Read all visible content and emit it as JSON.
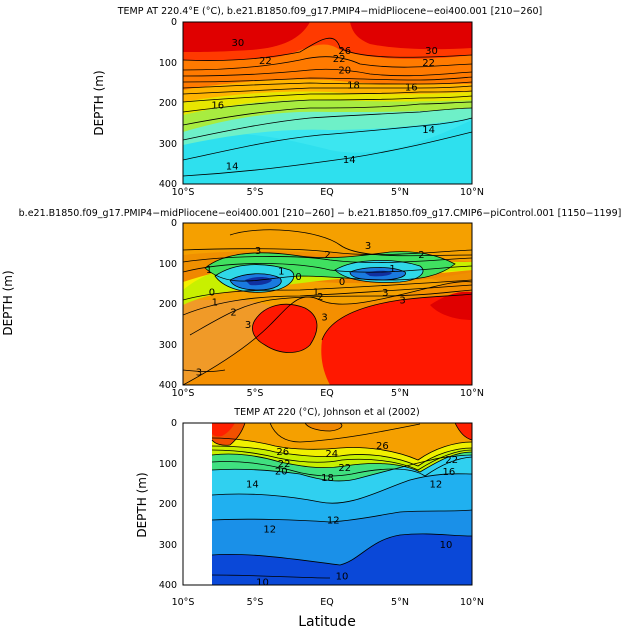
{
  "chart_data": [
    {
      "type": "contour",
      "title": "TEMP AT 220.4°E (°C), b.e21.B1850.f09_g17.PMIP4−midPliocene−eoi400.001 [210−260]",
      "xlabel": "",
      "ylabel": "DEPTH (m)",
      "xlim": [
        -10,
        10
      ],
      "ylim": [
        400,
        0
      ],
      "x_ticks": [
        "10°S",
        "5°S",
        "EQ",
        "5°N",
        "10°N"
      ],
      "y_ticks": [
        "0",
        "100",
        "200",
        "300",
        "400"
      ],
      "contour_labels": [
        {
          "text": "30",
          "x": -6.2,
          "y": 50
        },
        {
          "text": "26",
          "x": 1.2,
          "y": 70
        },
        {
          "text": "30",
          "x": 7.2,
          "y": 70
        },
        {
          "text": "22",
          "x": -4.3,
          "y": 95
        },
        {
          "text": "22",
          "x": 0.8,
          "y": 90
        },
        {
          "text": "22",
          "x": 7.0,
          "y": 100
        },
        {
          "text": "20",
          "x": 1.2,
          "y": 118
        },
        {
          "text": "18",
          "x": 1.8,
          "y": 155
        },
        {
          "text": "16",
          "x": -7.6,
          "y": 205
        },
        {
          "text": "16",
          "x": 5.8,
          "y": 160
        },
        {
          "text": "14",
          "x": 7.0,
          "y": 265
        },
        {
          "text": "14",
          "x": 1.5,
          "y": 340
        },
        {
          "text": "14",
          "x": -6.6,
          "y": 355
        }
      ]
    },
    {
      "type": "contour",
      "title": "b.e21.B1850.f09_g17.PMIP4−midPliocene−eoi400.001 [210−260] − b.e21.B1850.f09_g17.CMIP6−piControl.001 [1150−1199]",
      "xlabel": "",
      "ylabel": "DEPTH (m)",
      "xlim": [
        -10,
        10
      ],
      "ylim": [
        400,
        0
      ],
      "x_ticks": [
        "10°S",
        "5°S",
        "EQ",
        "5°N",
        "10°N"
      ],
      "y_ticks": [
        "0",
        "100",
        "200",
        "300",
        "400"
      ],
      "contour_labels": [
        {
          "text": "3",
          "x": -4.8,
          "y": 68
        },
        {
          "text": "3",
          "x": 2.8,
          "y": 55
        },
        {
          "text": "2",
          "x": 0.0,
          "y": 78
        },
        {
          "text": "2",
          "x": 6.5,
          "y": 78
        },
        {
          "text": "1",
          "x": -8.2,
          "y": 115
        },
        {
          "text": "1",
          "x": -3.2,
          "y": 118
        },
        {
          "text": "0",
          "x": -2.0,
          "y": 132
        },
        {
          "text": "1",
          "x": 4.5,
          "y": 112
        },
        {
          "text": "0",
          "x": 1.0,
          "y": 145
        },
        {
          "text": "1",
          "x": -0.8,
          "y": 170
        },
        {
          "text": "2",
          "x": -0.5,
          "y": 182
        },
        {
          "text": "3",
          "x": 4.0,
          "y": 172
        },
        {
          "text": "3",
          "x": 5.2,
          "y": 190
        },
        {
          "text": "0",
          "x": -8.0,
          "y": 170
        },
        {
          "text": "1",
          "x": -7.8,
          "y": 195
        },
        {
          "text": "2",
          "x": -6.5,
          "y": 220
        },
        {
          "text": "3",
          "x": -5.5,
          "y": 250
        },
        {
          "text": "3",
          "x": -0.2,
          "y": 232
        },
        {
          "text": "3",
          "x": -8.9,
          "y": 368
        }
      ]
    },
    {
      "type": "contour",
      "title": "TEMP AT 220 (°C), Johnson et al (2002)",
      "xlabel": "Latitude",
      "ylabel": "DEPTH (m)",
      "xlim": [
        -10,
        10
      ],
      "ylim": [
        400,
        0
      ],
      "x_ticks": [
        "10°S",
        "5°S",
        "EQ",
        "5°N",
        "10°N"
      ],
      "y_ticks": [
        "0",
        "100",
        "200",
        "300",
        "400"
      ],
      "data_xlim": [
        -8,
        10
      ],
      "contour_labels": [
        {
          "text": "26",
          "x": -3.1,
          "y": 70
        },
        {
          "text": "24",
          "x": 0.3,
          "y": 75
        },
        {
          "text": "26",
          "x": 3.8,
          "y": 55
        },
        {
          "text": "22",
          "x": -3.0,
          "y": 100
        },
        {
          "text": "22",
          "x": 1.2,
          "y": 110
        },
        {
          "text": "22",
          "x": 8.6,
          "y": 90
        },
        {
          "text": "20",
          "x": -3.2,
          "y": 118
        },
        {
          "text": "18",
          "x": 0.0,
          "y": 135
        },
        {
          "text": "16",
          "x": 8.4,
          "y": 120
        },
        {
          "text": "14",
          "x": -5.2,
          "y": 150
        },
        {
          "text": "12",
          "x": 7.5,
          "y": 150
        },
        {
          "text": "12",
          "x": 0.4,
          "y": 240
        },
        {
          "text": "12",
          "x": -4.0,
          "y": 262
        },
        {
          "text": "10",
          "x": 8.2,
          "y": 300
        },
        {
          "text": "10",
          "x": 1.0,
          "y": 378
        },
        {
          "text": "10",
          "x": -4.5,
          "y": 392
        }
      ]
    }
  ]
}
